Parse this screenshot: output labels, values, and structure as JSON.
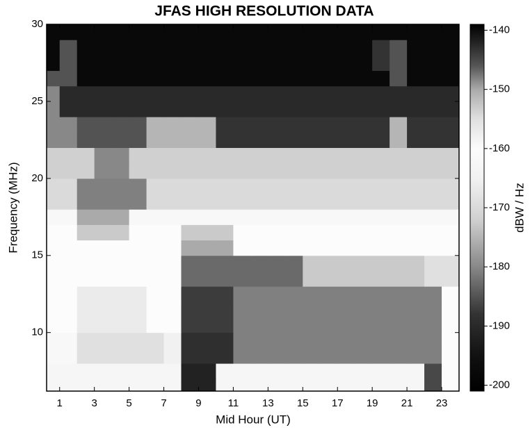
{
  "chart_data": {
    "type": "heatmap",
    "title": "JFAS HIGH RESOLUTION  DATA",
    "x_label": "Mid Hour (UT)",
    "y_label": "Frequency (MHz)",
    "colorbar_label": "dBW / Hz",
    "xlim": [
      0.25,
      24
    ],
    "xticks": [
      1,
      3,
      5,
      7,
      9,
      11,
      13,
      15,
      17,
      19,
      21,
      23
    ],
    "ylim": [
      6.2,
      30
    ],
    "yticks": [
      10,
      15,
      20,
      25,
      30
    ],
    "clim": [
      -201,
      -139
    ],
    "cticks": [
      -140,
      -150,
      -160,
      -170,
      -180,
      -190,
      -200
    ],
    "colormap": [
      {
        "value": -201,
        "color": "#000000"
      },
      {
        "value": -195,
        "color": "#111111"
      },
      {
        "value": -188,
        "color": "#333333"
      },
      {
        "value": -180,
        "color": "#888888"
      },
      {
        "value": -172,
        "color": "#d0d0d0"
      },
      {
        "value": -165,
        "color": "#f2f2f2"
      },
      {
        "value": -160,
        "color": "#fcfcfc"
      },
      {
        "value": -155,
        "color": "#e0e0e0"
      },
      {
        "value": -150,
        "color": "#aaaaaa"
      },
      {
        "value": -146,
        "color": "#555555"
      },
      {
        "value": -142,
        "color": "#222222"
      },
      {
        "value": -139,
        "color": "#000000"
      }
    ],
    "x": [
      0.5,
      1.5,
      2.5,
      3.5,
      4.5,
      5.5,
      6.5,
      7.5,
      8.5,
      9.5,
      10.5,
      11.5,
      12.5,
      13.5,
      14.5,
      15.5,
      16.5,
      17.5,
      18.5,
      19.5,
      20.5,
      21.5,
      22.5,
      23.5
    ],
    "y": [
      6.5,
      7.5,
      8.5,
      9.5,
      10.5,
      11.5,
      12.5,
      13.5,
      14.5,
      15.5,
      16.5,
      17.5,
      18.5,
      19.5,
      20.5,
      21.5,
      22.5,
      23.5,
      24.5,
      25.5,
      26.5,
      27.5,
      28.5,
      29.5
    ],
    "z": [
      [
        -163,
        -163,
        -163,
        -163,
        -163,
        -163,
        -163,
        -163,
        -142,
        -142,
        -163,
        -163,
        -163,
        -163,
        -163,
        -163,
        -163,
        -163,
        -163,
        -163,
        -163,
        -163,
        -145,
        -160
      ],
      [
        -163,
        -163,
        -163,
        -163,
        -163,
        -163,
        -163,
        -163,
        -142,
        -142,
        -163,
        -163,
        -163,
        -163,
        -163,
        -163,
        -163,
        -163,
        -163,
        -163,
        -163,
        -163,
        -145,
        -160
      ],
      [
        -162,
        -162,
        -155,
        -155,
        -155,
        -155,
        -155,
        -158,
        -143,
        -143,
        -143,
        -148,
        -148,
        -148,
        -148,
        -148,
        -148,
        -148,
        -148,
        -148,
        -148,
        -148,
        -148,
        -160
      ],
      [
        -162,
        -162,
        -155,
        -155,
        -155,
        -155,
        -155,
        -158,
        -143,
        -143,
        -143,
        -148,
        -148,
        -148,
        -148,
        -148,
        -148,
        -148,
        -148,
        -148,
        -148,
        -148,
        -148,
        -160
      ],
      [
        -160,
        -160,
        -157,
        -157,
        -157,
        -157,
        -160,
        -160,
        -144,
        -144,
        -144,
        -148,
        -148,
        -148,
        -148,
        -148,
        -148,
        -148,
        -148,
        -148,
        -148,
        -148,
        -148,
        -160
      ],
      [
        -160,
        -160,
        -157,
        -157,
        -157,
        -157,
        -160,
        -160,
        -144,
        -144,
        -144,
        -148,
        -148,
        -148,
        -148,
        -148,
        -148,
        -148,
        -148,
        -148,
        -148,
        -148,
        -148,
        -160
      ],
      [
        -160,
        -160,
        -157,
        -157,
        -157,
        -157,
        -160,
        -160,
        -144,
        -144,
        -144,
        -148,
        -148,
        -148,
        -148,
        -148,
        -148,
        -148,
        -148,
        -148,
        -148,
        -148,
        -148,
        -160
      ],
      [
        -160,
        -160,
        -160,
        -160,
        -160,
        -160,
        -160,
        -160,
        -147,
        -147,
        -147,
        -147,
        -147,
        -147,
        -147,
        -153,
        -153,
        -153,
        -153,
        -153,
        -153,
        -153,
        -155,
        -155
      ],
      [
        -160,
        -160,
        -160,
        -160,
        -160,
        -160,
        -160,
        -160,
        -147,
        -147,
        -147,
        -147,
        -147,
        -147,
        -147,
        -153,
        -153,
        -153,
        -153,
        -153,
        -153,
        -153,
        -155,
        -155
      ],
      [
        -160,
        -160,
        -160,
        -160,
        -160,
        -160,
        -160,
        -160,
        -150,
        -150,
        -150,
        -160,
        -160,
        -160,
        -160,
        -160,
        -160,
        -160,
        -160,
        -160,
        -160,
        -160,
        -160,
        -160
      ],
      [
        -160,
        -160,
        -153,
        -153,
        -153,
        -160,
        -160,
        -160,
        -153,
        -153,
        -153,
        -160,
        -160,
        -160,
        -160,
        -160,
        -160,
        -160,
        -160,
        -160,
        -160,
        -160,
        -160,
        -160
      ],
      [
        -162,
        -162,
        -150,
        -150,
        -150,
        -162,
        -162,
        -162,
        -162,
        -162,
        -162,
        -162,
        -162,
        -162,
        -162,
        -162,
        -162,
        -162,
        -162,
        -162,
        -162,
        -162,
        -162,
        -162
      ],
      [
        -170,
        -170,
        -148,
        -148,
        -148,
        -148,
        -170,
        -170,
        -170,
        -170,
        -170,
        -170,
        -170,
        -170,
        -170,
        -170,
        -170,
        -170,
        -170,
        -170,
        -170,
        -170,
        -170,
        -170
      ],
      [
        -170,
        -170,
        -148,
        -148,
        -148,
        -148,
        -170,
        -170,
        -170,
        -170,
        -170,
        -170,
        -170,
        -170,
        -170,
        -170,
        -170,
        -170,
        -170,
        -170,
        -170,
        -170,
        -170,
        -170
      ],
      [
        -172,
        -172,
        -172,
        -180,
        -180,
        -172,
        -172,
        -172,
        -172,
        -172,
        -172,
        -172,
        -172,
        -172,
        -172,
        -172,
        -172,
        -172,
        -172,
        -172,
        -172,
        -172,
        -172,
        -172
      ],
      [
        -172,
        -172,
        -172,
        -180,
        -180,
        -172,
        -172,
        -172,
        -172,
        -172,
        -172,
        -172,
        -172,
        -172,
        -172,
        -172,
        -172,
        -172,
        -172,
        -172,
        -172,
        -172,
        -172,
        -172
      ],
      [
        -180,
        -180,
        -185,
        -185,
        -185,
        -185,
        -175,
        -175,
        -175,
        -175,
        -188,
        -188,
        -188,
        -188,
        -188,
        -188,
        -188,
        -188,
        -188,
        -188,
        -175,
        -188,
        -188,
        -188
      ],
      [
        -180,
        -180,
        -185,
        -185,
        -185,
        -185,
        -175,
        -175,
        -175,
        -175,
        -188,
        -188,
        -188,
        -188,
        -188,
        -188,
        -188,
        -188,
        -188,
        -188,
        -175,
        -188,
        -188,
        -188
      ],
      [
        -180,
        -190,
        -190,
        -190,
        -190,
        -190,
        -190,
        -190,
        -190,
        -190,
        -190,
        -190,
        -190,
        -190,
        -190,
        -190,
        -190,
        -190,
        -190,
        -190,
        -190,
        -190,
        -190,
        -190
      ],
      [
        -180,
        -190,
        -190,
        -190,
        -190,
        -190,
        -190,
        -190,
        -190,
        -190,
        -190,
        -190,
        -190,
        -190,
        -190,
        -190,
        -190,
        -190,
        -190,
        -190,
        -190,
        -190,
        -190,
        -190
      ],
      [
        -185,
        -185,
        -198,
        -198,
        -198,
        -198,
        -198,
        -198,
        -198,
        -198,
        -198,
        -198,
        -198,
        -198,
        -198,
        -198,
        -198,
        -198,
        -198,
        -198,
        -185,
        -198,
        -198,
        -198
      ],
      [
        -198,
        -185,
        -198,
        -198,
        -198,
        -198,
        -198,
        -198,
        -198,
        -198,
        -198,
        -198,
        -198,
        -198,
        -198,
        -198,
        -198,
        -198,
        -198,
        -188,
        -185,
        -198,
        -198,
        -198
      ],
      [
        -198,
        -185,
        -198,
        -198,
        -198,
        -198,
        -198,
        -198,
        -198,
        -198,
        -198,
        -198,
        -198,
        -198,
        -198,
        -198,
        -198,
        -198,
        -198,
        -188,
        -185,
        -198,
        -198,
        -198
      ],
      [
        -198,
        -198,
        -198,
        -198,
        -198,
        -198,
        -198,
        -198,
        -198,
        -198,
        -198,
        -198,
        -198,
        -198,
        -198,
        -198,
        -198,
        -198,
        -198,
        -198,
        -198,
        -198,
        -198,
        -198
      ]
    ]
  }
}
